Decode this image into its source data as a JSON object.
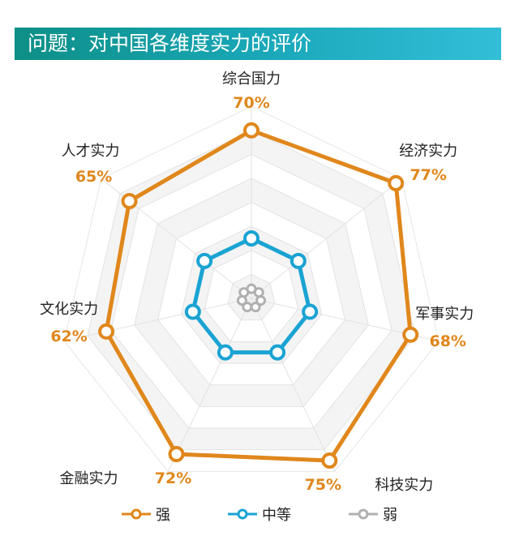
{
  "header": {
    "title": "问题：对中国各维度实力的评价"
  },
  "colors": {
    "strong": "#e0871c",
    "medium": "#1aa3d3",
    "weak": "#b0b0b0",
    "header_start": "#0d8f86",
    "header_end": "#33bed8"
  },
  "chart_data": {
    "type": "radar",
    "title": "问题：对中国各维度实力的评价",
    "axes": [
      "综合国力",
      "经济实力",
      "军事实力",
      "科技实力",
      "金融实力",
      "文化实力",
      "人才实力"
    ],
    "range": [
      0,
      100
    ],
    "grid": true,
    "legend_position": "bottom",
    "series": [
      {
        "name": "强",
        "color": "#e0871c",
        "values": [
          70,
          77,
          68,
          75,
          72,
          62,
          65
        ],
        "labels": [
          "70%",
          "77%",
          "68%",
          "75%",
          "72%",
          "62%",
          "65%"
        ]
      },
      {
        "name": "中等",
        "color": "#1aa3d3",
        "values": [
          25,
          25,
          25,
          25,
          25,
          25,
          25
        ]
      },
      {
        "name": "弱",
        "color": "#b0b0b0",
        "values": [
          4,
          4,
          4,
          4,
          4,
          4,
          4
        ]
      }
    ]
  }
}
